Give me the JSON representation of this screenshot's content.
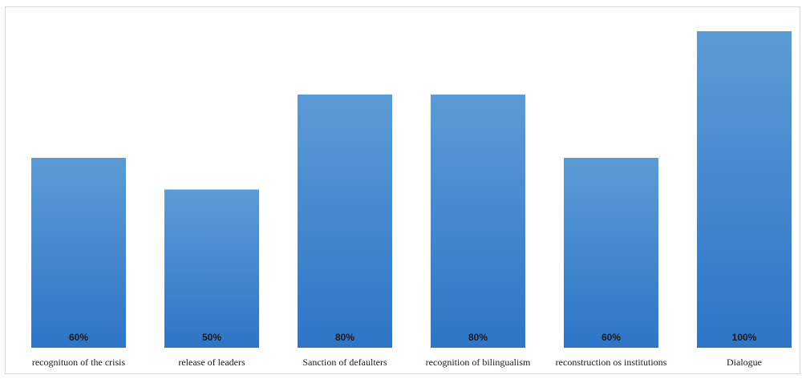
{
  "chart_data": {
    "type": "bar",
    "title": "",
    "xlabel": "",
    "ylabel": "",
    "categories": [
      "recognituon of the crisis",
      "release of leaders",
      "Sanction of defaulters",
      "recognition of bilingualism",
      "reconstruction os institutions",
      "Dialogue"
    ],
    "values": [
      60,
      50,
      80,
      80,
      60,
      100
    ],
    "data_labels": [
      "60%",
      "50%",
      "80%",
      "80%",
      "60%",
      "100%"
    ],
    "ylim": [
      0,
      100
    ],
    "grid": false,
    "legend": "none",
    "colors": {
      "bar_top": "#5b9bd5",
      "bar_bottom": "#2e75c7",
      "frame": "#d9d9d9"
    }
  }
}
